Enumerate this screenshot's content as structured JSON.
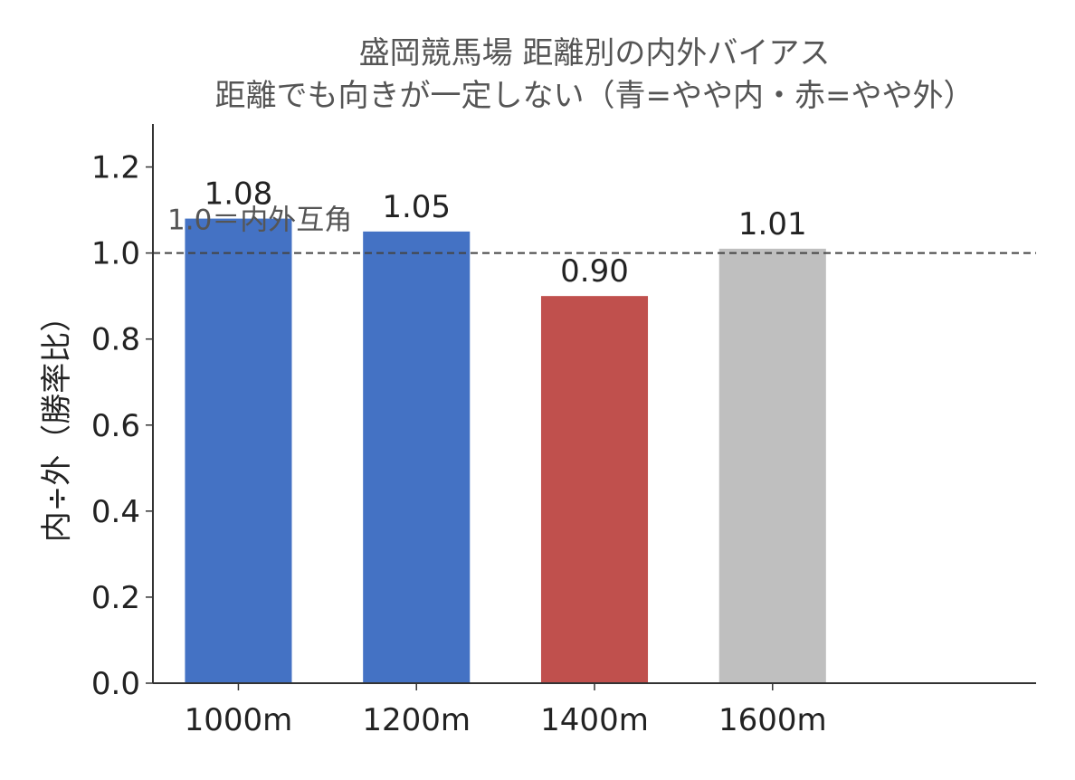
{
  "chart_data": {
    "type": "bar",
    "title": "盛岡競馬場 距離別の内外バイアス",
    "subtitle": "距離でも向きが一定しない（青=やや内・赤=やや外）",
    "y_label": "内÷外（勝率比）",
    "categories": [
      "1000m",
      "1200m",
      "1400m",
      "1600m"
    ],
    "values": [
      1.08,
      1.05,
      0.9,
      1.01
    ],
    "value_labels": [
      "1.08",
      "1.05",
      "0.90",
      "1.01"
    ],
    "colors": [
      "#4472c4",
      "#4472c4",
      "#c0504d",
      "#bfbfbf"
    ],
    "ylim": [
      0,
      1.3
    ],
    "yticks": [
      {
        "value": 0,
        "label": "0.0"
      },
      {
        "value": 0.2,
        "label": "0.2"
      },
      {
        "value": 0.4,
        "label": "0.4"
      },
      {
        "value": 0.6,
        "label": "0.6"
      },
      {
        "value": 0.8,
        "label": "0.8"
      },
      {
        "value": 1,
        "label": "1.0"
      },
      {
        "value": 1.2,
        "label": "1.2"
      }
    ],
    "reference_line": {
      "value": 1,
      "label": "1.0＝内外互角"
    }
  }
}
